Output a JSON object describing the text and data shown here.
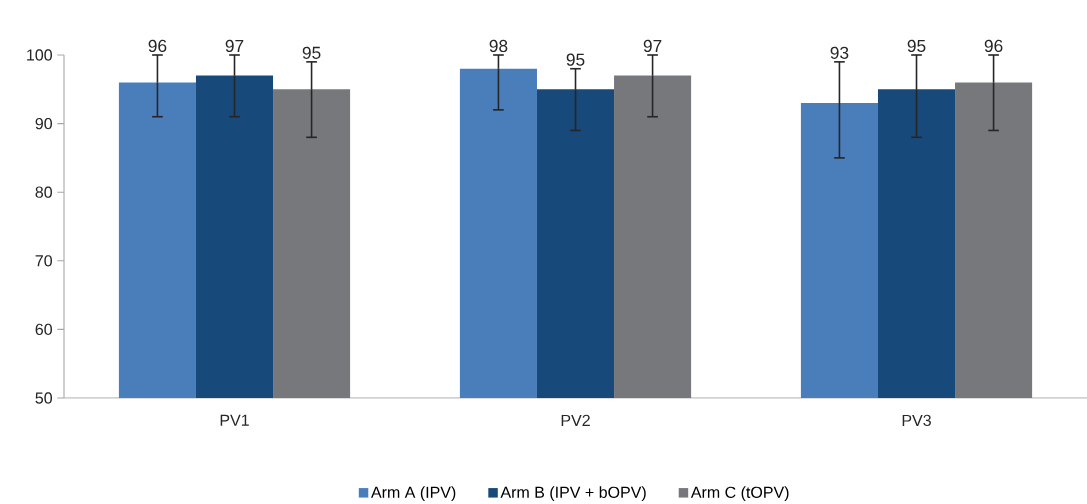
{
  "chart_data": {
    "type": "bar",
    "categories": [
      "PV1",
      "PV2",
      "PV3"
    ],
    "series": [
      {
        "name": "Arm A (IPV)",
        "color": "#4a7ebb",
        "values": [
          96,
          98,
          93
        ],
        "errors": [
          [
            91,
            100
          ],
          [
            92,
            100
          ],
          [
            85,
            99
          ]
        ]
      },
      {
        "name": "Arm B (IPV  + bOPV)",
        "color": "#17497a",
        "values": [
          97,
          95,
          95
        ],
        "errors": [
          [
            91,
            100
          ],
          [
            89,
            98
          ],
          [
            88,
            100
          ]
        ]
      },
      {
        "name": "Arm C (tOPV)",
        "color": "#77787b",
        "values": [
          95,
          97,
          96
        ],
        "errors": [
          [
            88,
            99
          ],
          [
            91,
            100
          ],
          [
            89,
            100
          ]
        ]
      }
    ],
    "ylim": [
      50,
      100
    ],
    "yticks": [
      50,
      60,
      70,
      80,
      90,
      100
    ],
    "data_labels": true,
    "grid": false,
    "legend": "bottom"
  }
}
